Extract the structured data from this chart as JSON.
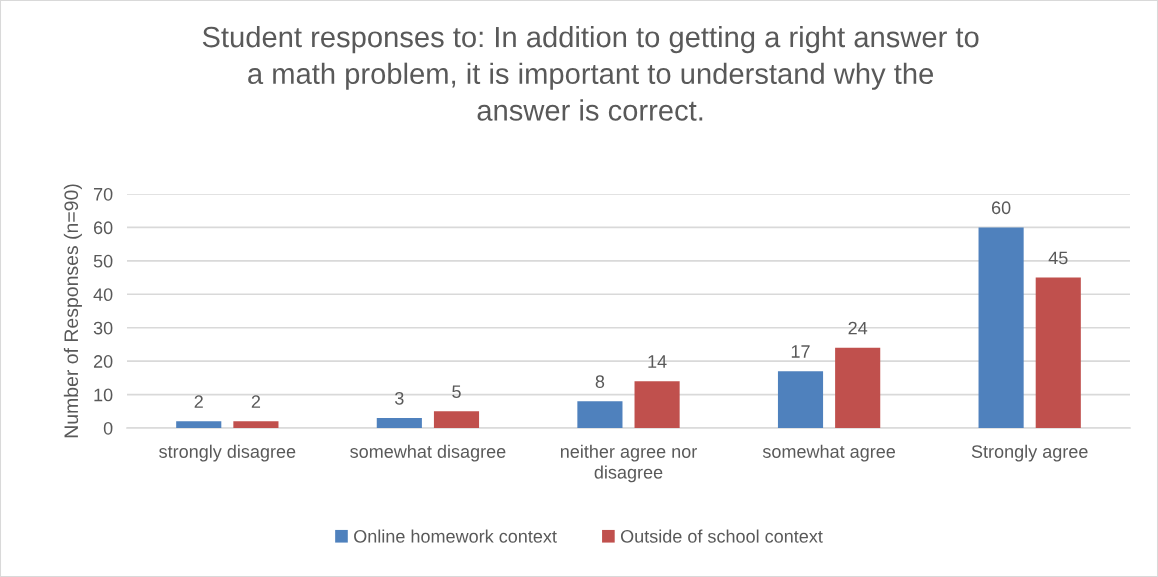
{
  "chart_data": {
    "type": "bar",
    "title": "Student responses to: In addition to getting a right answer to a math problem, it is important to understand why the answer is correct.",
    "ylabel": "Number of Responses (n=90)",
    "categories": [
      "strongly disagree",
      "somewhat disagree",
      "neither agree nor disagree",
      "somewhat agree",
      "Strongly agree"
    ],
    "series": [
      {
        "name": "Online homework context",
        "color": "#4f81bd",
        "values": [
          2,
          3,
          8,
          17,
          60
        ]
      },
      {
        "name": "Outside of school context",
        "color": "#c0504d",
        "values": [
          2,
          5,
          14,
          24,
          45
        ]
      }
    ],
    "ylim": [
      0,
      70
    ],
    "yticks": [
      0,
      10,
      20,
      30,
      40,
      50,
      60,
      70
    ],
    "grid": "y",
    "legend": "bottom",
    "data_labels": true
  }
}
